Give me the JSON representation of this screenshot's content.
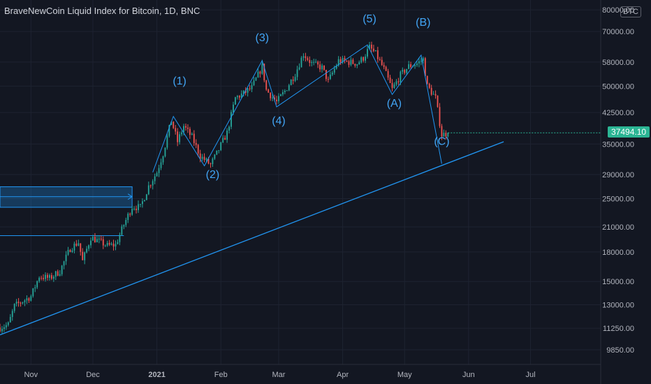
{
  "title": "BraveNewCoin Liquid Index for Bitcoin, 1D, BNC",
  "currency_badge": "BTC",
  "current_price_label": "37494.10",
  "colors": {
    "background": "#131722",
    "grid": "#1e2331",
    "axis_text": "#b2b5be",
    "up_candle": "#26a69a",
    "down_candle": "#ef5350",
    "drawing_blue": "#2196f3",
    "wave_label": "#42a5f5",
    "price_badge": "#2bb594"
  },
  "chart_data": {
    "type": "candlestick",
    "title": "BraveNewCoin Liquid Index for Bitcoin, 1D, BNC",
    "y_scale": "log",
    "ylim": [
      9000,
      85000
    ],
    "y_ticks": [
      9850,
      11250,
      13000,
      15000,
      18000,
      21000,
      25000,
      29000,
      35000,
      42500,
      50000,
      58000,
      70000,
      80000
    ],
    "y_tick_labels": [
      "9850.00",
      "11250.00",
      "13000.00",
      "15000.00",
      "18000.00",
      "21000.00",
      "25000.00",
      "29000.00",
      "35000.00",
      "42500.00",
      "50000.00",
      "58000.00",
      "70000.00",
      "80000.00"
    ],
    "x_range": [
      "2020-10-17",
      "2021-08-04"
    ],
    "x_ticks": [
      {
        "date": "2020-11-01",
        "label": "Nov",
        "bold": false
      },
      {
        "date": "2020-12-01",
        "label": "Dec",
        "bold": false
      },
      {
        "date": "2021-01-01",
        "label": "2021",
        "bold": true
      },
      {
        "date": "2021-02-01",
        "label": "Feb",
        "bold": false
      },
      {
        "date": "2021-03-01",
        "label": "Mar",
        "bold": false
      },
      {
        "date": "2021-04-01",
        "label": "Apr",
        "bold": false
      },
      {
        "date": "2021-05-01",
        "label": "May",
        "bold": false
      },
      {
        "date": "2021-06-01",
        "label": "Jun",
        "bold": false
      },
      {
        "date": "2021-07-01",
        "label": "Jul",
        "bold": false
      }
    ],
    "grid": true,
    "current_price": 37494.1,
    "close_path": [
      [
        "2020-10-17",
        11300
      ],
      [
        "2020-10-21",
        11500
      ],
      [
        "2020-10-24",
        12900
      ],
      [
        "2020-10-28",
        13300
      ],
      [
        "2020-11-01",
        13700
      ],
      [
        "2020-11-05",
        15500
      ],
      [
        "2020-11-10",
        15300
      ],
      [
        "2020-11-15",
        16000
      ],
      [
        "2020-11-20",
        18400
      ],
      [
        "2020-11-24",
        19100
      ],
      [
        "2020-11-26",
        17000
      ],
      [
        "2020-11-30",
        19700
      ],
      [
        "2020-12-04",
        19200
      ],
      [
        "2020-12-08",
        18700
      ],
      [
        "2020-12-12",
        18800
      ],
      [
        "2020-12-16",
        21300
      ],
      [
        "2020-12-20",
        23800
      ],
      [
        "2020-12-24",
        23700
      ],
      [
        "2020-12-28",
        27000
      ],
      [
        "2021-01-01",
        29400
      ],
      [
        "2021-01-04",
        33000
      ],
      [
        "2021-01-08",
        40500
      ],
      [
        "2021-01-11",
        35500
      ],
      [
        "2021-01-14",
        39100
      ],
      [
        "2021-01-18",
        36500
      ],
      [
        "2021-01-22",
        32500
      ],
      [
        "2021-01-27",
        30800
      ],
      [
        "2021-01-30",
        33000
      ],
      [
        "2021-02-04",
        37500
      ],
      [
        "2021-02-08",
        46500
      ],
      [
        "2021-02-12",
        47800
      ],
      [
        "2021-02-16",
        49500
      ],
      [
        "2021-02-21",
        56500
      ],
      [
        "2021-02-23",
        48800
      ],
      [
        "2021-02-28",
        45300
      ],
      [
        "2021-03-04",
        48500
      ],
      [
        "2021-03-09",
        54000
      ],
      [
        "2021-03-13",
        61000
      ],
      [
        "2021-03-17",
        57500
      ],
      [
        "2021-03-22",
        56000
      ],
      [
        "2021-03-25",
        51500
      ],
      [
        "2021-03-30",
        58500
      ],
      [
        "2021-04-04",
        58000
      ],
      [
        "2021-04-08",
        57500
      ],
      [
        "2021-04-11",
        59500
      ],
      [
        "2021-04-14",
        63500
      ],
      [
        "2021-04-17",
        61000
      ],
      [
        "2021-04-21",
        55500
      ],
      [
        "2021-04-25",
        49000
      ],
      [
        "2021-04-29",
        53500
      ],
      [
        "2021-05-03",
        56500
      ],
      [
        "2021-05-07",
        57500
      ],
      [
        "2021-05-10",
        59000
      ],
      [
        "2021-05-12",
        50000
      ],
      [
        "2021-05-16",
        46500
      ],
      [
        "2021-05-19",
        37000
      ],
      [
        "2021-05-22",
        37494
      ]
    ],
    "wave_labels": [
      {
        "label": "(1)",
        "date": "2021-01-12",
        "price": 50500
      },
      {
        "label": "(2)",
        "date": "2021-01-28",
        "price": 28400
      },
      {
        "label": "(3)",
        "date": "2021-02-21",
        "price": 66000
      },
      {
        "label": "(4)",
        "date": "2021-03-01",
        "price": 39500
      },
      {
        "label": "(5)",
        "date": "2021-04-14",
        "price": 74000
      },
      {
        "label": "(A)",
        "date": "2021-04-26",
        "price": 44000
      },
      {
        "label": "(B)",
        "date": "2021-05-10",
        "price": 72500
      },
      {
        "label": "(C)",
        "date": "2021-05-19",
        "price": 34800
      }
    ],
    "wave_path": [
      [
        "2020-12-30",
        29400
      ],
      [
        "2021-01-09",
        41500
      ],
      [
        "2021-01-24",
        30600
      ],
      [
        "2021-02-21",
        58500
      ],
      [
        "2021-02-28",
        44000
      ],
      [
        "2021-04-13",
        64500
      ],
      [
        "2021-04-25",
        47500
      ],
      [
        "2021-05-09",
        60500
      ],
      [
        "2021-05-19",
        31000
      ]
    ],
    "trendline": {
      "start": [
        "2020-10-17",
        10800
      ],
      "end": [
        "2021-06-18",
        35500
      ]
    },
    "horizontal_lines": [
      {
        "price": 19900,
        "from": "2020-10-17",
        "to": "2020-12-16"
      }
    ],
    "zone": {
      "top": 26900,
      "bottom": 23700,
      "from": "2020-10-17",
      "to": "2020-12-20",
      "mid_arrow": 25300
    }
  }
}
